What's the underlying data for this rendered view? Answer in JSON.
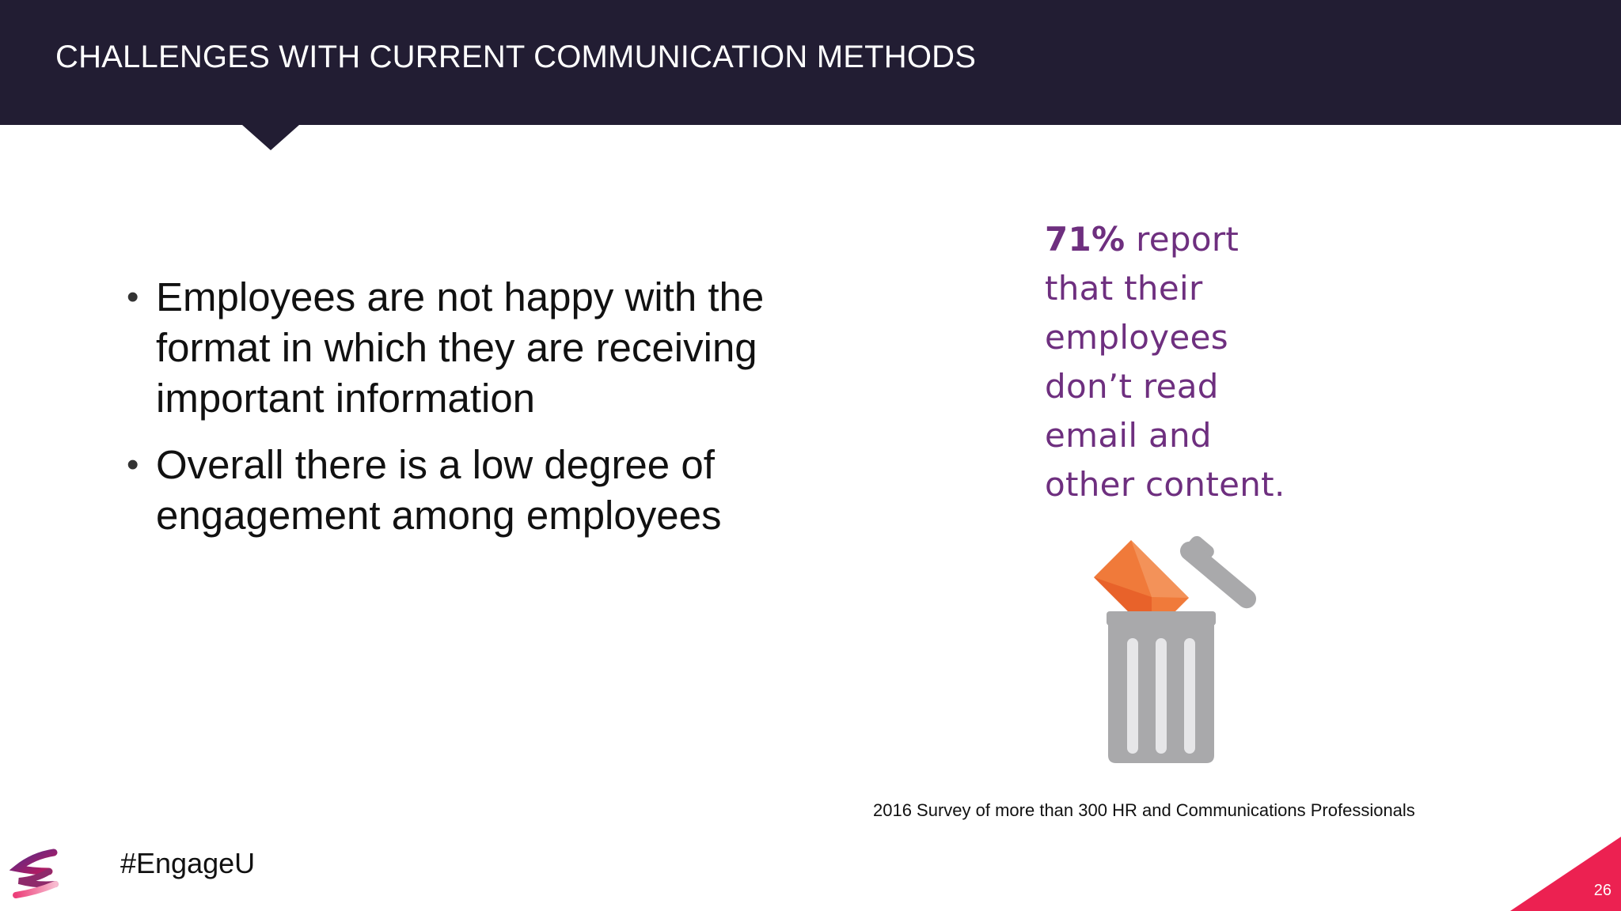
{
  "header": {
    "title": "CHALLENGES WITH CURRENT COMMUNICATION METHODS",
    "background_color": "#221d33"
  },
  "main": {
    "bullets": [
      "Employees are not happy with the format in which they are receiving important information",
      "Overall there is a low degree of engagement among employees"
    ]
  },
  "infographic": {
    "stat_number": "71%",
    "stat_lines": [
      "report",
      "that their",
      "employees",
      "don’t read",
      "email and",
      "other content."
    ],
    "text_color": "#6e2f7f",
    "icon": "trash-can-with-envelope-icon",
    "envelope_color": "#f07a3a",
    "trash_color": "#a9a9ab"
  },
  "footer": {
    "source_note": "2016 Survey of more than 300 HR and Communications Professionals",
    "hashtag": "#EngageU",
    "page_number": "26",
    "accent_color": "#ec2151",
    "logo": "engageu-logo-icon"
  }
}
